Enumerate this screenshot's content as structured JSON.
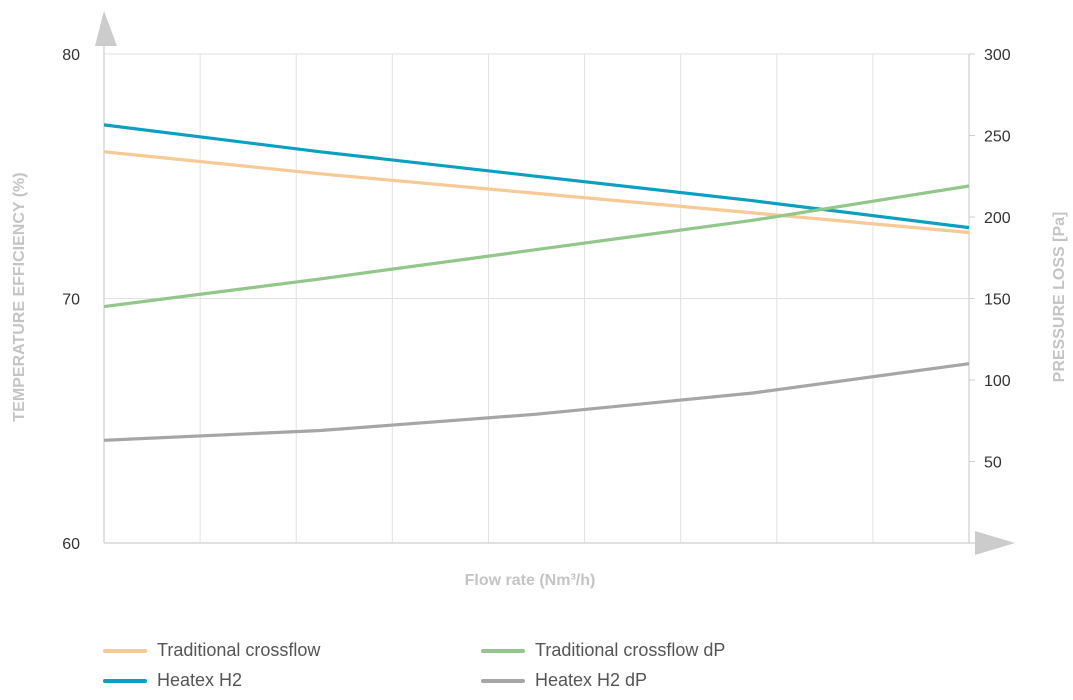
{
  "chart_data": {
    "type": "line",
    "title": "",
    "xlabel": "Flow rate (Nm³/h)",
    "ylabel_left": "TEMPERATURE EFFICIENCY (%)",
    "ylabel_right": "PRESSURE LOSS [Pa]",
    "x": [
      0,
      0.25,
      0.5,
      0.75,
      1
    ],
    "x_gridlines": 9,
    "ylim_left": [
      60,
      80
    ],
    "yticks_left": [
      60,
      70,
      80
    ],
    "ylim_right": [
      0,
      300
    ],
    "yticks_right": [
      50,
      100,
      150,
      200,
      250,
      300
    ],
    "grid": true,
    "legend_position": "bottom",
    "series": [
      {
        "name": "Traditional crossflow",
        "axis": "left",
        "color": "#f6c995",
        "values": [
          76.0,
          75.1,
          74.3,
          73.5,
          72.7
        ]
      },
      {
        "name": "Heatex H2",
        "axis": "left",
        "color": "#0ba0c0",
        "values": [
          77.1,
          76.0,
          75.0,
          74.0,
          72.9
        ]
      },
      {
        "name": "Traditional crossflow dP",
        "axis": "right",
        "color": "#92c68a",
        "values": [
          145,
          162,
          180,
          198,
          219
        ]
      },
      {
        "name": "Heatex H2 dP",
        "axis": "right",
        "color": "#a7a6a6",
        "values": [
          63,
          69,
          79,
          92,
          110
        ]
      }
    ]
  },
  "legend": [
    {
      "label": "Traditional crossflow",
      "color": "#f6c995"
    },
    {
      "label": "Traditional crossflow dP",
      "color": "#92c68a"
    },
    {
      "label": "Heatex H2",
      "color": "#0ba0c0"
    },
    {
      "label": "Heatex H2 dP",
      "color": "#a7a6a6"
    }
  ]
}
